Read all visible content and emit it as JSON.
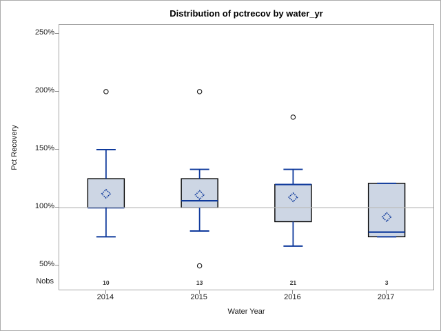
{
  "title": "Distribution of pctrecov by water_yr",
  "colors": {
    "box_fill": "#cdd6e4",
    "box_outline": "#000000",
    "blue_line": "#0f3a9c",
    "outlier_stroke": "#1a1a1a",
    "reference_line": "#bababa",
    "axis_line": "#a3a3a3",
    "tick_mark": "#8e8e8e",
    "text": "#1a1a1a",
    "nobs_text": "#333333"
  },
  "chart_data": {
    "type": "boxplot",
    "title": "Distribution of pctrecov by water_yr",
    "xlabel": "Water Year",
    "ylabel": "Pct Recovery",
    "nobs_label": "Nobs",
    "categories": [
      "2014",
      "2015",
      "2016",
      "2017"
    ],
    "nobs": [
      10,
      13,
      21,
      3
    ],
    "y_ticks": [
      {
        "value": 250,
        "label": "250%"
      },
      {
        "value": 200,
        "label": "200%"
      },
      {
        "value": 150,
        "label": "150%"
      },
      {
        "value": 100,
        "label": "100%"
      },
      {
        "value": 50,
        "label": "50%"
      }
    ],
    "ylim": [
      29.5,
      257.5
    ],
    "reference_line": 100,
    "grid": false,
    "boxes": [
      {
        "category": "2014",
        "nobs": 10,
        "whisker_low": 75,
        "q1": 100,
        "median": 100,
        "q3": 125,
        "whisker_high": 150,
        "mean": 112,
        "outliers": [
          200
        ]
      },
      {
        "category": "2015",
        "nobs": 13,
        "whisker_low": 80,
        "q1": 100,
        "median": 106,
        "q3": 125,
        "whisker_high": 133,
        "mean": 111,
        "outliers": [
          200,
          50
        ]
      },
      {
        "category": "2016",
        "nobs": 21,
        "whisker_low": 67,
        "q1": 88,
        "median": 120,
        "q3": 120,
        "whisker_high": 133,
        "mean": 109,
        "outliers": [
          178
        ]
      },
      {
        "category": "2017",
        "nobs": 3,
        "whisker_low": 75,
        "q1": 75,
        "median": 79,
        "q3": 121,
        "whisker_high": 121,
        "mean": 92,
        "outliers": []
      }
    ]
  }
}
